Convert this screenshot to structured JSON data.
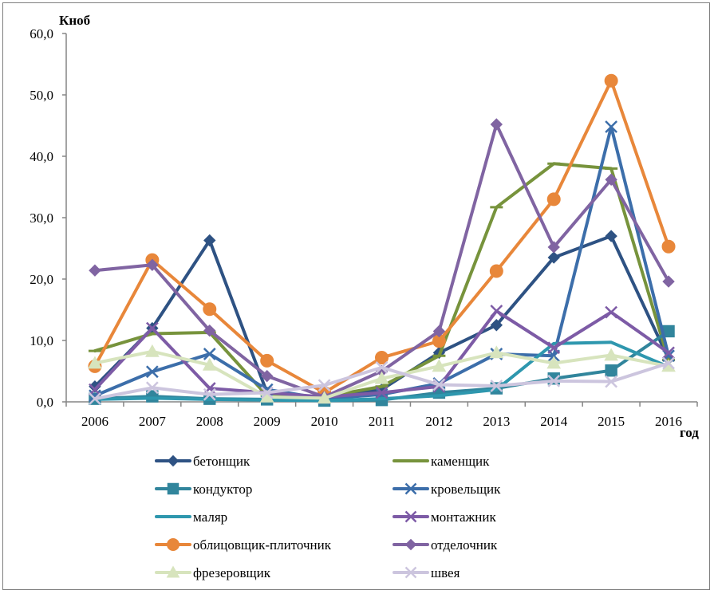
{
  "chart_data": {
    "type": "line",
    "title": "",
    "xlabel": "год",
    "ylabel": "Кноб",
    "ylim": [
      0,
      60
    ],
    "ytick_step": 10,
    "ytick_labels": [
      "0,0",
      "10,0",
      "20,0",
      "30,0",
      "40,0",
      "50,0",
      "60,0"
    ],
    "x": [
      "2006",
      "2007",
      "2008",
      "2009",
      "2010",
      "2011",
      "2012",
      "2013",
      "2014",
      "2015",
      "2016"
    ],
    "grid": false,
    "legend_position": "bottom",
    "series": [
      {
        "name": "бетонщик",
        "color": "#2E5283",
        "marker": "diamond",
        "values": [
          2.5,
          12.0,
          26.3,
          1.5,
          0.5,
          2.0,
          8.0,
          12.5,
          23.5,
          27.0,
          7.0
        ]
      },
      {
        "name": "каменщик",
        "color": "#77933C",
        "marker": "dash",
        "values": [
          8.3,
          11.1,
          11.3,
          1.0,
          0.8,
          2.5,
          7.5,
          31.7,
          38.8,
          38.0,
          6.8
        ]
      },
      {
        "name": "кондуктор",
        "color": "#31859C",
        "marker": "square",
        "values": [
          0.5,
          0.9,
          0.5,
          0.4,
          0.2,
          0.3,
          1.5,
          2.2,
          3.8,
          5.1,
          11.5
        ]
      },
      {
        "name": "кровельщик",
        "color": "#3C6EAA",
        "marker": "x",
        "values": [
          1.0,
          4.9,
          7.8,
          2.0,
          0.5,
          1.2,
          3.0,
          7.8,
          7.5,
          44.8,
          7.5
        ]
      },
      {
        "name": "маляр",
        "color": "#2E97AE",
        "marker": "none",
        "values": [
          0.4,
          0.6,
          0.4,
          0.3,
          0.2,
          0.5,
          1.0,
          2.0,
          9.5,
          9.7,
          5.7
        ]
      },
      {
        "name": "монтажник",
        "color": "#7D5BA6",
        "marker": "x",
        "values": [
          2.0,
          12.0,
          2.2,
          1.5,
          0.8,
          1.5,
          2.5,
          14.8,
          8.8,
          14.6,
          8.0
        ]
      },
      {
        "name": "облицовщик-плиточник",
        "color": "#E8873A",
        "marker": "circle",
        "values": [
          5.8,
          23.1,
          15.1,
          6.7,
          1.5,
          7.2,
          9.9,
          21.3,
          33.0,
          52.3,
          25.3
        ]
      },
      {
        "name": "отделочник",
        "color": "#8064A2",
        "marker": "diamond",
        "values": [
          21.4,
          22.3,
          11.6,
          4.2,
          0.8,
          5.0,
          11.5,
          45.2,
          25.2,
          36.2,
          19.6
        ]
      },
      {
        "name": "фрезеровщик",
        "color": "#D7E4BD",
        "marker": "triangle",
        "values": [
          6.3,
          8.2,
          6.0,
          0.8,
          0.6,
          3.8,
          5.8,
          8.0,
          6.3,
          7.6,
          5.8
        ]
      },
      {
        "name": "швея",
        "color": "#CCC5DE",
        "marker": "x",
        "values": [
          0.5,
          2.3,
          1.2,
          1.5,
          2.7,
          5.6,
          2.8,
          2.6,
          3.4,
          3.3,
          6.3
        ]
      }
    ]
  }
}
